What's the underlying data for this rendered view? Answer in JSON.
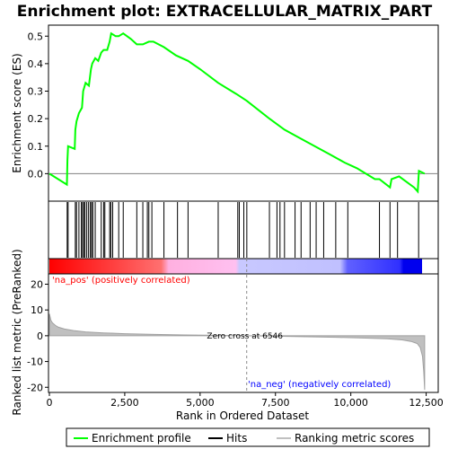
{
  "chart_data": {
    "type": "line",
    "title": "Enrichment plot: EXTRACELLULAR_MATRIX_PART",
    "xlabel": "Rank in Ordered Dataset",
    "ylabel_top": "Enrichment score (ES)",
    "ylabel_bottom": "Ranked list metric (PreRanked)",
    "xlim": [
      0,
      12900
    ],
    "x_ticks": [
      0,
      2500,
      5000,
      7500,
      10000,
      12500
    ],
    "x_tick_labels": [
      "0",
      "2,500",
      "5,000",
      "7,500",
      "10,000",
      "12,500"
    ],
    "es_ylim": [
      -0.1,
      0.54
    ],
    "es_ticks": [
      0.0,
      0.1,
      0.2,
      0.3,
      0.4,
      0.5
    ],
    "es_tick_labels": [
      "0.0",
      "0.1",
      "0.2",
      "0.3",
      "0.4",
      "0.5"
    ],
    "metric_ylim": [
      -22,
      24
    ],
    "metric_ticks": [
      20,
      10,
      0,
      -10,
      -20
    ],
    "metric_tick_labels": [
      "20",
      "10",
      "0",
      "-10",
      "-20"
    ],
    "enrichment_profile": [
      [
        0,
        0.0
      ],
      [
        580,
        -0.04
      ],
      [
        600,
        0.05
      ],
      [
        620,
        0.1
      ],
      [
        840,
        0.09
      ],
      [
        860,
        0.16
      ],
      [
        900,
        0.19
      ],
      [
        980,
        0.22
      ],
      [
        1080,
        0.24
      ],
      [
        1120,
        0.3
      ],
      [
        1200,
        0.33
      ],
      [
        1310,
        0.32
      ],
      [
        1380,
        0.38
      ],
      [
        1420,
        0.4
      ],
      [
        1520,
        0.42
      ],
      [
        1620,
        0.41
      ],
      [
        1720,
        0.44
      ],
      [
        1800,
        0.45
      ],
      [
        1920,
        0.45
      ],
      [
        2000,
        0.48
      ],
      [
        2050,
        0.51
      ],
      [
        2200,
        0.5
      ],
      [
        2300,
        0.5
      ],
      [
        2450,
        0.51
      ],
      [
        2700,
        0.49
      ],
      [
        2900,
        0.47
      ],
      [
        3100,
        0.47
      ],
      [
        3300,
        0.48
      ],
      [
        3450,
        0.48
      ],
      [
        3800,
        0.46
      ],
      [
        4200,
        0.43
      ],
      [
        4600,
        0.41
      ],
      [
        5000,
        0.38
      ],
      [
        5600,
        0.33
      ],
      [
        6200,
        0.29
      ],
      [
        6546,
        0.265
      ],
      [
        7300,
        0.2
      ],
      [
        7800,
        0.16
      ],
      [
        8300,
        0.13
      ],
      [
        8800,
        0.1
      ],
      [
        9300,
        0.07
      ],
      [
        9800,
        0.04
      ],
      [
        10200,
        0.02
      ],
      [
        10800,
        -0.02
      ],
      [
        10950,
        -0.02
      ],
      [
        11300,
        -0.05
      ],
      [
        11350,
        -0.02
      ],
      [
        11600,
        -0.01
      ],
      [
        12100,
        -0.05
      ],
      [
        12220,
        -0.065
      ],
      [
        12260,
        0.01
      ],
      [
        12450,
        0.0
      ]
    ],
    "hits": [
      590,
      620,
      860,
      900,
      980,
      1060,
      1100,
      1140,
      1180,
      1240,
      1300,
      1360,
      1400,
      1440,
      1520,
      1720,
      1800,
      1840,
      2000,
      2040,
      2100,
      2300,
      2450,
      2900,
      3100,
      3250,
      3300,
      3400,
      3800,
      4250,
      4600,
      5600,
      6250,
      6300,
      6450,
      6550,
      7300,
      7550,
      7650,
      7800,
      8150,
      8350,
      8650,
      8850,
      9100,
      9500,
      9900,
      10950,
      11300,
      11550,
      12250
    ],
    "metric_curve": [
      [
        0,
        8.5
      ],
      [
        50,
        6.0
      ],
      [
        100,
        5.0
      ],
      [
        200,
        4.0
      ],
      [
        300,
        3.3
      ],
      [
        500,
        2.6
      ],
      [
        800,
        2.0
      ],
      [
        1200,
        1.5
      ],
      [
        1800,
        1.1
      ],
      [
        2500,
        0.8
      ],
      [
        3500,
        0.5
      ],
      [
        4500,
        0.3
      ],
      [
        5500,
        0.15
      ],
      [
        6546,
        0.0
      ],
      [
        7500,
        -0.2
      ],
      [
        8500,
        -0.4
      ],
      [
        9500,
        -0.6
      ],
      [
        10500,
        -0.9
      ],
      [
        11200,
        -1.2
      ],
      [
        11700,
        -1.6
      ],
      [
        12000,
        -2.2
      ],
      [
        12200,
        -3.0
      ],
      [
        12300,
        -4.5
      ],
      [
        12380,
        -8.0
      ],
      [
        12420,
        -14.0
      ],
      [
        12450,
        -21.0
      ]
    ],
    "zero_cross": 6546,
    "zero_cross_label": "Zero cross at 6546",
    "pos_label": "'na_pos' (positively correlated)",
    "neg_label": "'na_neg' (negatively correlated)",
    "legend": {
      "enrichment": "Enrichment profile",
      "hits": "Hits",
      "metric": "Ranking metric scores"
    },
    "colors": {
      "profile": "#00ff00",
      "hits": "#000000",
      "metric": "#c0c0c0",
      "pos_label": "#ff0000",
      "neg_label": "#0000ff",
      "gradient": [
        "#ff0000",
        "#ff7070",
        "#ffb0e0",
        "#ffc0f0",
        "#c0c0ff",
        "#8080ff",
        "#2020ff",
        "#0000ee"
      ]
    }
  }
}
